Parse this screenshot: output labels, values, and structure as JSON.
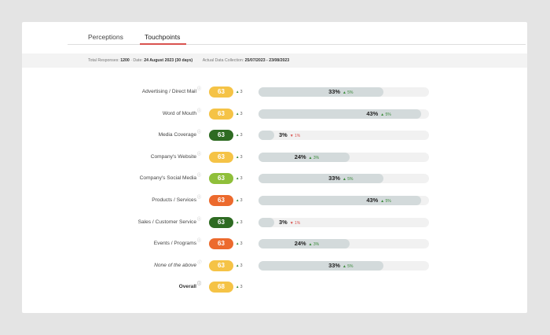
{
  "tabs": [
    {
      "label": "Perceptions",
      "active": false
    },
    {
      "label": "Touchpoints",
      "active": true
    }
  ],
  "meta": {
    "total_label": "Total Responses:",
    "total_value": "1200",
    "date_label": "· Date:",
    "date_value": "24 August 2023 (30 days)",
    "collection_label": "Actual Data Collection:",
    "collection_value": "25/07/2023 - 23/08/2023"
  },
  "colors": {
    "yellow": "#f5c346",
    "darkgreen": "#2e6b22",
    "lightgreen": "#8fbf3a",
    "orange": "#ec6a2d",
    "accent": "#d9534f"
  },
  "rows": [
    {
      "label": "Advertising / Direct Mail",
      "score": "63",
      "score_color": "#f5c346",
      "score_delta": "3",
      "percent": 33,
      "percent_text": "33%",
      "change_dir": "up",
      "change_text": "5%"
    },
    {
      "label": "Word of Mouth",
      "score": "63",
      "score_color": "#f5c346",
      "score_delta": "3",
      "percent": 43,
      "percent_text": "43%",
      "change_dir": "up",
      "change_text": "5%"
    },
    {
      "label": "Media Coverage",
      "score": "63",
      "score_color": "#2e6b22",
      "score_delta": "3",
      "percent": 3,
      "percent_text": "3%",
      "change_dir": "down",
      "change_text": "1%"
    },
    {
      "label": "Company's Website",
      "score": "63",
      "score_color": "#f5c346",
      "score_delta": "3",
      "percent": 24,
      "percent_text": "24%",
      "change_dir": "up",
      "change_text": "3%"
    },
    {
      "label": "Company's Social Media",
      "score": "63",
      "score_color": "#8fbf3a",
      "score_delta": "3",
      "percent": 33,
      "percent_text": "33%",
      "change_dir": "up",
      "change_text": "5%"
    },
    {
      "label": "Products / Services",
      "score": "63",
      "score_color": "#ec6a2d",
      "score_delta": "3",
      "percent": 43,
      "percent_text": "43%",
      "change_dir": "up",
      "change_text": "5%"
    },
    {
      "label": "Sales / Customer Service",
      "score": "63",
      "score_color": "#2e6b22",
      "score_delta": "3",
      "percent": 3,
      "percent_text": "3%",
      "change_dir": "down",
      "change_text": "1%"
    },
    {
      "label": "Events / Programs",
      "score": "63",
      "score_color": "#ec6a2d",
      "score_delta": "3",
      "percent": 24,
      "percent_text": "24%",
      "change_dir": "up",
      "change_text": "3%"
    },
    {
      "label": "None of the above",
      "score": "63",
      "score_color": "#f5c346",
      "score_delta": "3",
      "percent": 33,
      "percent_text": "33%",
      "change_dir": "up",
      "change_text": "5%",
      "italic": true
    }
  ],
  "overall": {
    "label": "Overall",
    "score": "68",
    "score_color": "#f5c346",
    "score_delta": "3"
  }
}
